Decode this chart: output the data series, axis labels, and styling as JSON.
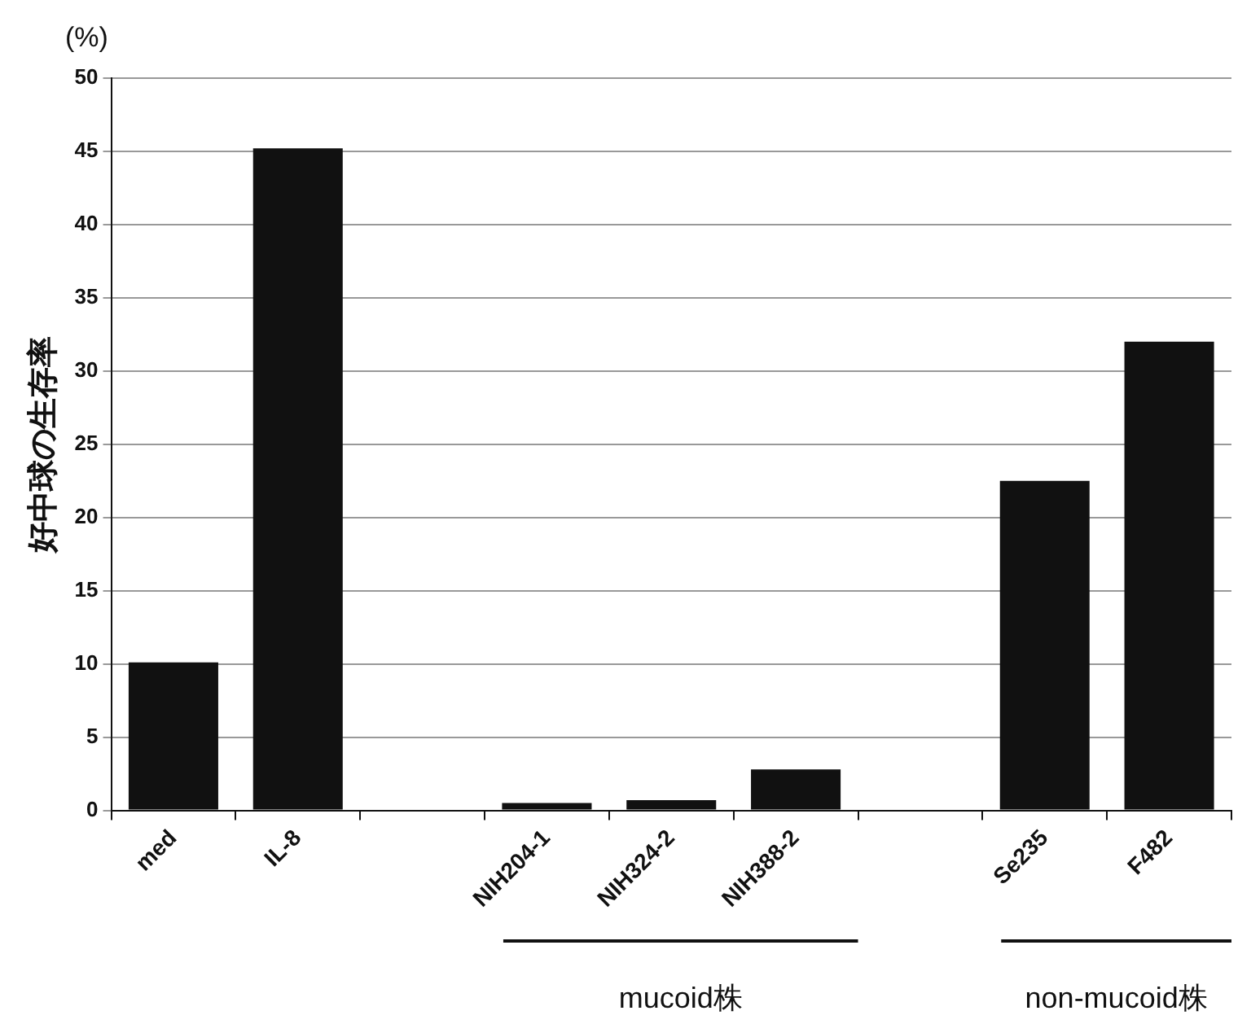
{
  "chart_data": {
    "type": "bar",
    "ylabel": "好中球の生存率",
    "categories": [
      "med",
      "IL-8",
      null,
      "NIH204-1",
      "NIH324-2",
      "NIH388-2",
      null,
      "Se235",
      "F482"
    ],
    "values": [
      10.1,
      45.2,
      null,
      0.5,
      0.7,
      2.8,
      null,
      22.5,
      32
    ],
    "color": "#111111",
    "ylim": [
      0,
      50
    ],
    "yticks": [
      0,
      5,
      10,
      15,
      20,
      25,
      30,
      35,
      40,
      45,
      50
    ],
    "grid": "y",
    "legend": false,
    "annotations": [
      "(%)",
      "mucoid株",
      "non-mucoid株"
    ]
  }
}
